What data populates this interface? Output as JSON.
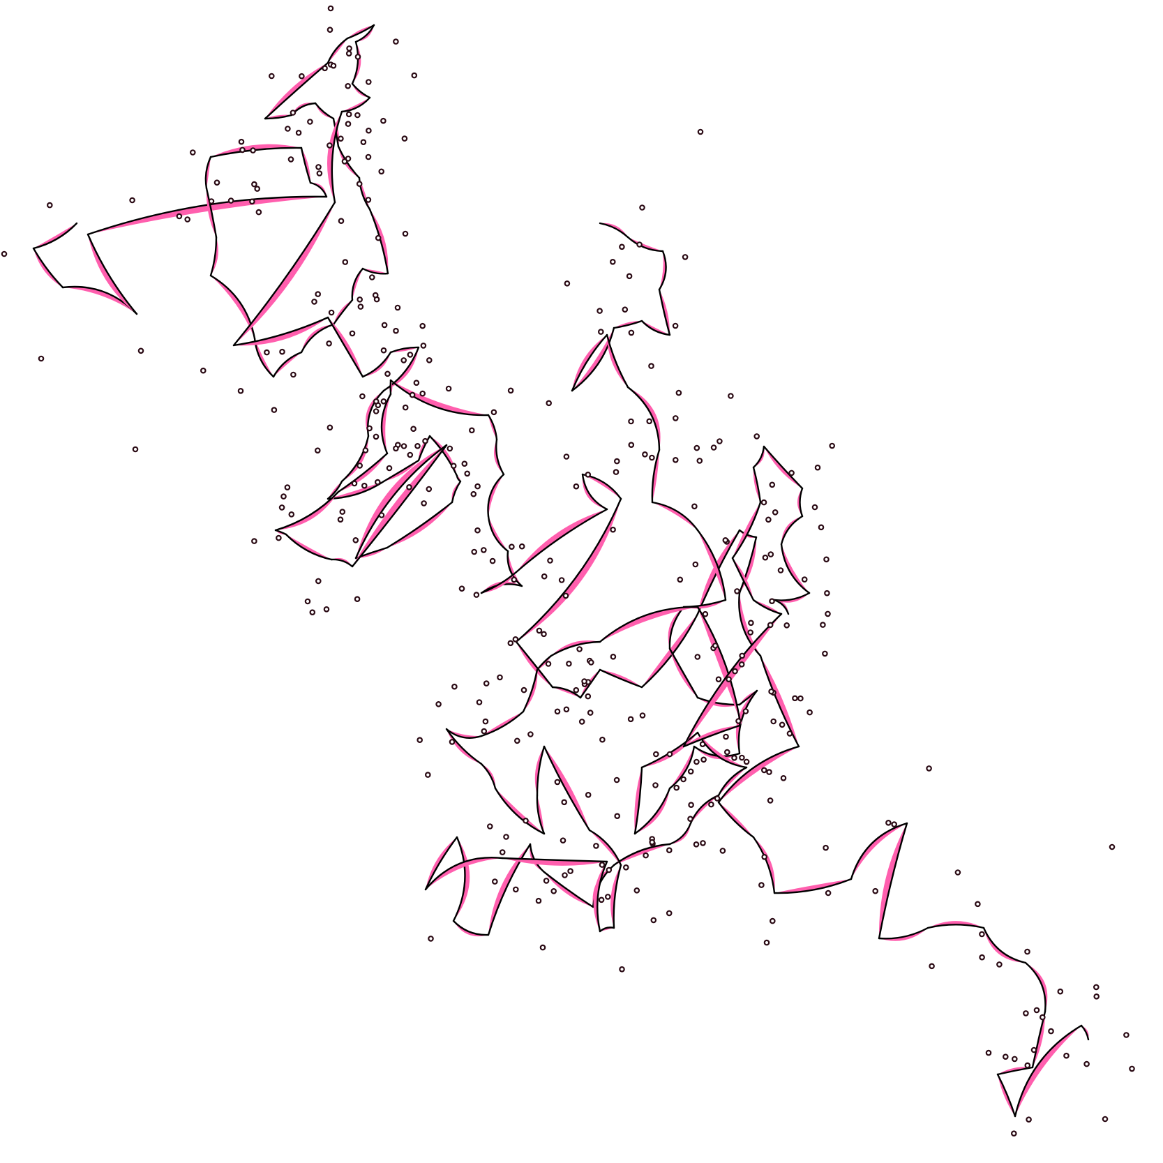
{
  "artwork": {
    "kind": "abstract generative line drawing",
    "background_color": "#ffffff",
    "ribbon_fill_color": "#ff5fae",
    "line_color": "#000000",
    "dot_stroke_color": "#2a0a14",
    "dot_fill_color": "#ffffff"
  }
}
